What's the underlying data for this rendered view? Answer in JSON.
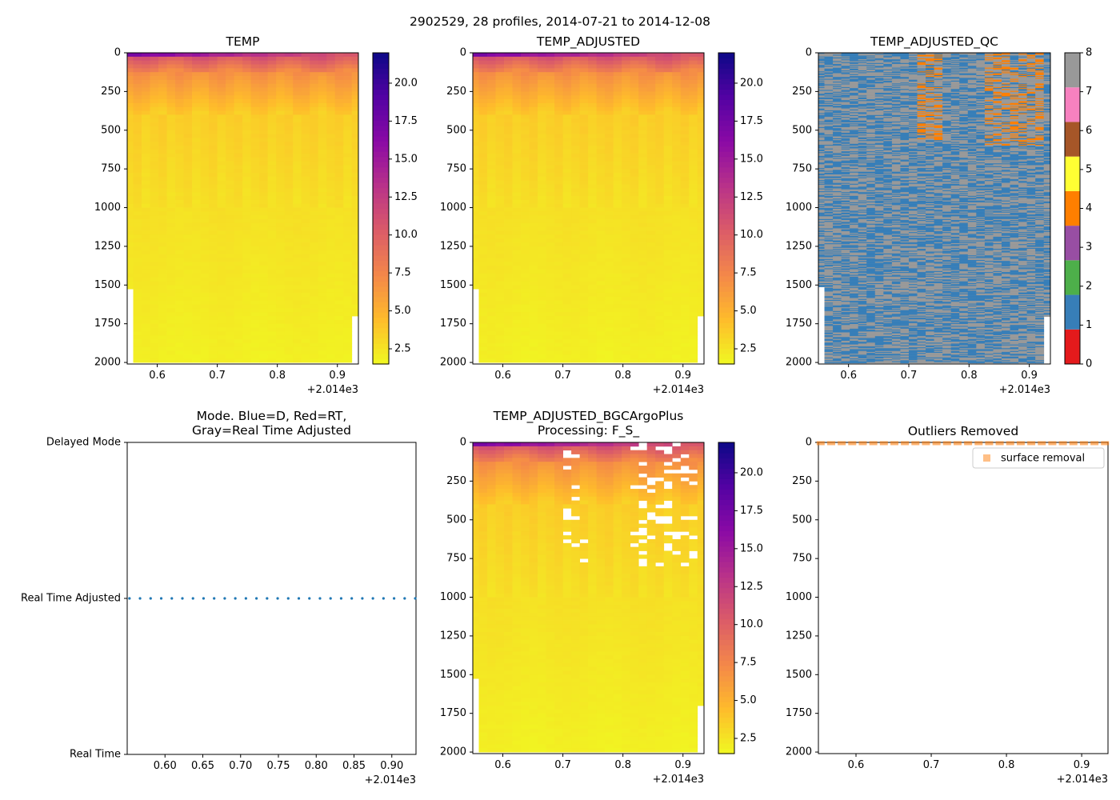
{
  "figure": {
    "suptitle": "2902529, 28 profiles, 2014-07-21 to 2014-12-08",
    "x_offset_label": "+2.014e3"
  },
  "chart_data": [
    {
      "id": "temp",
      "type": "heatmap",
      "title": "TEMP",
      "xlim": [
        0.55,
        0.935
      ],
      "ylim": [
        2010,
        0
      ],
      "xticks": [
        "0.6",
        "0.7",
        "0.8",
        "0.9"
      ],
      "xtick_values": [
        0.6,
        0.7,
        0.8,
        0.9
      ],
      "yticks": [
        "0",
        "250",
        "500",
        "750",
        "1000",
        "1250",
        "1500",
        "1750",
        "2000"
      ],
      "ytick_values": [
        0,
        250,
        500,
        750,
        1000,
        1250,
        1500,
        1750,
        2000
      ],
      "colormap": "plasma_r",
      "colorbar": {
        "min": 1.5,
        "max": 22,
        "ticks": [
          "2.5",
          "5.0",
          "7.5",
          "10.0",
          "12.5",
          "15.0",
          "17.5",
          "20.0"
        ],
        "tick_values": [
          2.5,
          5.0,
          7.5,
          10.0,
          12.5,
          15.0,
          17.5,
          20.0
        ]
      },
      "gaps": "none"
    },
    {
      "id": "temp_adjusted",
      "type": "heatmap",
      "title": "TEMP_ADJUSTED",
      "xlim": [
        0.55,
        0.935
      ],
      "ylim": [
        2010,
        0
      ],
      "xticks": [
        "0.6",
        "0.7",
        "0.8",
        "0.9"
      ],
      "xtick_values": [
        0.6,
        0.7,
        0.8,
        0.9
      ],
      "yticks": [
        "0",
        "250",
        "500",
        "750",
        "1000",
        "1250",
        "1500",
        "1750",
        "2000"
      ],
      "ytick_values": [
        0,
        250,
        500,
        750,
        1000,
        1250,
        1500,
        1750,
        2000
      ],
      "colormap": "plasma_r",
      "colorbar": {
        "min": 1.5,
        "max": 22,
        "ticks": [
          "2.5",
          "5.0",
          "7.5",
          "10.0",
          "12.5",
          "15.0",
          "17.5",
          "20.0"
        ],
        "tick_values": [
          2.5,
          5.0,
          7.5,
          10.0,
          12.5,
          15.0,
          17.5,
          20.0
        ]
      },
      "gaps": "none"
    },
    {
      "id": "temp_adjusted_qc",
      "type": "heatmap",
      "title": "TEMP_ADJUSTED_QC",
      "xlim": [
        0.55,
        0.935
      ],
      "ylim": [
        2010,
        0
      ],
      "xticks": [
        "0.6",
        "0.7",
        "0.8",
        "0.9"
      ],
      "xtick_values": [
        0.6,
        0.7,
        0.8,
        0.9
      ],
      "yticks": [
        "0",
        "250",
        "500",
        "750",
        "1000",
        "1250",
        "1500",
        "1750",
        "2000"
      ],
      "ytick_values": [
        0,
        250,
        500,
        750,
        1000,
        1250,
        1500,
        1750,
        2000
      ],
      "colormap": "qc_flags",
      "qc_colors": [
        "#e41a1c",
        "#377eb8",
        "#4daf4a",
        "#984ea3",
        "#ff7f00",
        "#ffff33",
        "#a65628",
        "#f781bf",
        "#999999"
      ],
      "colorbar": {
        "min": 0,
        "max": 8,
        "ticks": [
          "0",
          "1",
          "2",
          "3",
          "4",
          "5",
          "6",
          "7",
          "8"
        ],
        "tick_values": [
          0,
          1,
          2,
          3,
          4,
          5,
          6,
          7,
          8
        ]
      }
    },
    {
      "id": "mode",
      "type": "scatter",
      "title_lines": [
        "Mode. Blue=D, Red=RT,",
        "Gray=Real Time Adjusted"
      ],
      "xlim": [
        0.55,
        0.932
      ],
      "xticks": [
        "0.60",
        "0.65",
        "0.70",
        "0.75",
        "0.80",
        "0.85",
        "0.90"
      ],
      "xtick_values": [
        0.6,
        0.65,
        0.7,
        0.75,
        0.8,
        0.85,
        0.9
      ],
      "ycategories": [
        "Delayed Mode",
        "Real Time Adjusted",
        "Real Time"
      ],
      "series": [
        {
          "name": "Real Time Adjusted",
          "color": "#1f77b4",
          "x": [
            0.553,
            0.567,
            0.581,
            0.595,
            0.609,
            0.623,
            0.637,
            0.651,
            0.665,
            0.679,
            0.693,
            0.707,
            0.721,
            0.735,
            0.749,
            0.763,
            0.777,
            0.791,
            0.805,
            0.819,
            0.833,
            0.847,
            0.861,
            0.875,
            0.889,
            0.903,
            0.917,
            0.931
          ],
          "y": "Real Time Adjusted"
        }
      ]
    },
    {
      "id": "bgcargoplus",
      "type": "heatmap",
      "title_lines": [
        "TEMP_ADJUSTED_BGCArgoPlus",
        "Processing: F_S_"
      ],
      "xlim": [
        0.55,
        0.935
      ],
      "ylim": [
        2010,
        0
      ],
      "xticks": [
        "0.6",
        "0.7",
        "0.8",
        "0.9"
      ],
      "xtick_values": [
        0.6,
        0.7,
        0.8,
        0.9
      ],
      "yticks": [
        "0",
        "250",
        "500",
        "750",
        "1000",
        "1250",
        "1500",
        "1750",
        "2000"
      ],
      "ytick_values": [
        0,
        250,
        500,
        750,
        1000,
        1250,
        1500,
        1750,
        2000
      ],
      "colormap": "plasma_r",
      "colorbar": {
        "min": 1.5,
        "max": 22,
        "ticks": [
          "2.5",
          "5.0",
          "7.5",
          "10.0",
          "12.5",
          "15.0",
          "17.5",
          "20.0"
        ],
        "tick_values": [
          2.5,
          5.0,
          7.5,
          10.0,
          12.5,
          15.0,
          17.5,
          20.0
        ]
      },
      "gaps": "removed"
    },
    {
      "id": "outliers",
      "type": "scatter",
      "title": "Outliers Removed",
      "xlim": [
        0.55,
        0.935
      ],
      "ylim": [
        2010,
        0
      ],
      "xticks": [
        "0.6",
        "0.7",
        "0.8",
        "0.9"
      ],
      "xtick_values": [
        0.6,
        0.7,
        0.8,
        0.9
      ],
      "yticks": [
        "0",
        "250",
        "500",
        "750",
        "1000",
        "1250",
        "1500",
        "1750",
        "2000"
      ],
      "ytick_values": [
        0,
        250,
        500,
        750,
        1000,
        1250,
        1500,
        1750,
        2000
      ],
      "legend": {
        "label": "surface removal",
        "placement": "top-right"
      },
      "series": [
        {
          "name": "surface removal",
          "color": "#ff7f0e",
          "marker": "square",
          "x": [
            0.553,
            0.567,
            0.581,
            0.595,
            0.609,
            0.623,
            0.637,
            0.651,
            0.665,
            0.679,
            0.693,
            0.707,
            0.721,
            0.735,
            0.749,
            0.763,
            0.777,
            0.791,
            0.805,
            0.819,
            0.833,
            0.847,
            0.861,
            0.875,
            0.889,
            0.903,
            0.917,
            0.931
          ],
          "y": [
            5,
            5,
            5,
            5,
            5,
            5,
            5,
            5,
            5,
            5,
            5,
            5,
            5,
            5,
            5,
            5,
            5,
            5,
            5,
            5,
            5,
            5,
            5,
            5,
            5,
            5,
            5,
            5
          ]
        }
      ]
    }
  ]
}
